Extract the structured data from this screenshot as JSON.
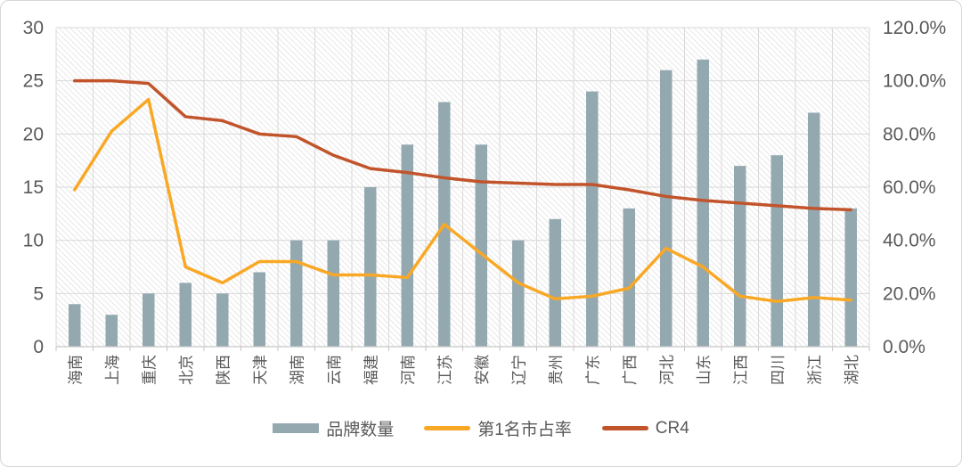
{
  "chart_data": {
    "type": "combo",
    "title": "",
    "categories": [
      "海南",
      "上海",
      "重庆",
      "北京",
      "陕西",
      "天津",
      "湖南",
      "云南",
      "福建",
      "河南",
      "江苏",
      "安徽",
      "辽宁",
      "贵州",
      "广东",
      "广西",
      "河北",
      "山东",
      "江西",
      "四川",
      "浙江",
      "湖北"
    ],
    "series": [
      {
        "name": "品牌数量",
        "type": "bar",
        "axis": "left",
        "color": "#94A9AF",
        "values": [
          4,
          3,
          5,
          6,
          5,
          7,
          10,
          10,
          15,
          19,
          23,
          19,
          10,
          12,
          24,
          13,
          26,
          27,
          17,
          18,
          22,
          13
        ]
      },
      {
        "name": "第1名市占率",
        "type": "line",
        "axis": "right",
        "color": "#F9A825",
        "values_pct": [
          59,
          81,
          93,
          30,
          24,
          32,
          32,
          27,
          27,
          26,
          46,
          35,
          24,
          18,
          19,
          22,
          37,
          30,
          19,
          17,
          18.5,
          17.5
        ]
      },
      {
        "name": "CR4",
        "type": "line",
        "axis": "right",
        "color": "#C2542C",
        "values_pct": [
          100,
          100,
          99,
          86.5,
          85,
          80,
          79,
          72,
          67,
          65.5,
          63.5,
          62,
          61.5,
          61,
          61,
          59,
          56.5,
          55,
          54,
          53,
          52,
          51.5
        ]
      }
    ],
    "axes": {
      "left": {
        "min": 0,
        "max": 30,
        "tick_labels": [
          "30",
          "25",
          "20",
          "15",
          "10",
          "5",
          "0"
        ]
      },
      "right": {
        "min": 0,
        "max": 120,
        "tick_labels": [
          "120.0%",
          "100.0%",
          "80.0%",
          "60.0%",
          "40.0%",
          "20.0%",
          "0.0%"
        ]
      }
    },
    "grid": true,
    "plot_fill": "diagonal-hatch",
    "legend_position": "bottom",
    "colors": {
      "grid": "#D9D9D9",
      "hatch": "#E7E7E7",
      "axis_line": "#C6C6C6",
      "axis_text": "#595959",
      "frame_border": "#D6D6D6"
    }
  }
}
